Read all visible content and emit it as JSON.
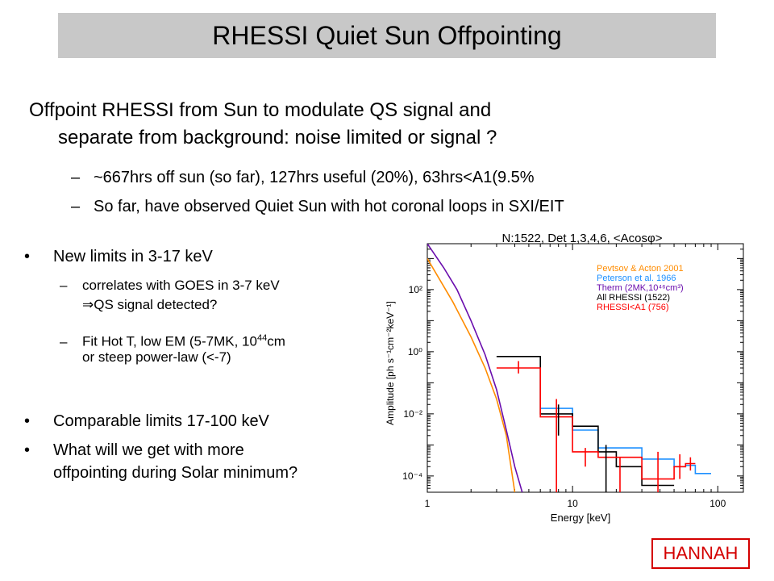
{
  "slide": {
    "title": "RHESSI Quiet Sun Offpointing",
    "intro_line1": "Offpoint RHESSI from Sun to modulate QS signal and",
    "intro_line2": "separate from background: noise limited or signal ?",
    "sub_bullets": [
      "~667hrs off sun (so far), 127hrs useful (20%), 63hrs<A1(9.5%",
      "So far, have observed Quiet Sun with hot coronal loops in SXI/EIT"
    ],
    "bullet1": "New limits in 3-17 keV",
    "bullet1_sub1_a": "correlates with GOES in 3-7 keV",
    "bullet1_sub1_b": "QS signal detected?",
    "bullet1_sub2_a": "Fit Hot T, low EM (5-7MK, 10",
    "bullet1_sub2_exp": "44",
    "bullet1_sub2_b": "cm",
    "bullet1_sub2_c": "or steep power-law (<-7)",
    "bullet2": "Comparable limits 17-100 keV",
    "bullet3_a": "What will we get with more",
    "bullet3_b": "offpointing during Solar minimum?",
    "author": "HANNAH",
    "dash": "–",
    "dot": "•",
    "implies": "⇒"
  },
  "chart_data": {
    "type": "line",
    "title": "N:1522, Det 1,3,4,6, <Acosφ>",
    "xlabel": "Energy [keV]",
    "ylabel": "Amplitude [ph s⁻¹cm⁻²keV⁻¹]",
    "xscale": "log",
    "yscale": "log",
    "xlim": [
      1,
      150
    ],
    "ylim": [
      3e-05,
      3000
    ],
    "xticks": [
      {
        "value": 1,
        "label": "1"
      },
      {
        "value": 10,
        "label": "10"
      },
      {
        "value": 100,
        "label": "100"
      }
    ],
    "yticks": [
      {
        "value": 100,
        "label": "10²"
      },
      {
        "value": 1,
        "label": "10⁰"
      },
      {
        "value": 0.01,
        "label": "10⁻²"
      },
      {
        "value": 0.0001,
        "label": "10⁻⁴"
      }
    ],
    "legend_position": "top-right",
    "series": [
      {
        "name": "Pevtsov & Acton 2001",
        "color": "#ff8c00",
        "kind": "line",
        "x": [
          1,
          1.5,
          2,
          2.5,
          3,
          3.5,
          4
        ],
        "y": [
          1000,
          40,
          3,
          0.3,
          0.03,
          0.002,
          3e-05
        ]
      },
      {
        "name": "Peterson et al. 1966",
        "color": "#1e90ff",
        "kind": "step",
        "edges": [
          6,
          10,
          15,
          30,
          50,
          60,
          70,
          90
        ],
        "y": [
          0.015,
          0.003,
          0.0008,
          0.00035,
          0.0002,
          0.00022,
          0.00012
        ]
      },
      {
        "name": "Therm (2MK,10⁴⁶cm³)",
        "color": "#6a0dad",
        "kind": "line",
        "x": [
          1,
          1.3,
          1.6,
          2,
          2.5,
          3,
          3.5,
          4,
          4.5
        ],
        "y": [
          3000,
          500,
          100,
          10,
          0.8,
          0.06,
          0.003,
          0.0002,
          3e-05
        ]
      },
      {
        "name": "All RHESSI (1522)",
        "color": "#000000",
        "kind": "step",
        "edges": [
          3,
          6,
          10,
          15,
          20,
          30,
          50
        ],
        "y": [
          0.7,
          0.01,
          0.004,
          0.0006,
          0.0002,
          5e-05
        ]
      },
      {
        "name": "RHESSI<A1 (756)",
        "color": "#ff0000",
        "kind": "step",
        "edges": [
          3,
          6,
          10,
          15,
          30,
          50,
          60,
          70
        ],
        "y": [
          0.3,
          0.008,
          0.0006,
          0.0004,
          8e-05,
          0.0002,
          0.00025
        ],
        "errors": [
          [
            0.2,
            0.5
          ],
          [
            3e-05,
            0.03
          ],
          [
            0.0002,
            0.0008
          ],
          [
            3e-05,
            0.0004
          ],
          [
            3e-05,
            0.0006
          ],
          [
            8e-05,
            0.0005
          ],
          [
            0.00015,
            0.0004
          ]
        ]
      }
    ],
    "black_errors": [
      {
        "x": 8,
        "lo": 0.002,
        "hi": 0.02
      },
      {
        "x": 17,
        "lo": 3e-05,
        "hi": 0.001
      }
    ]
  }
}
